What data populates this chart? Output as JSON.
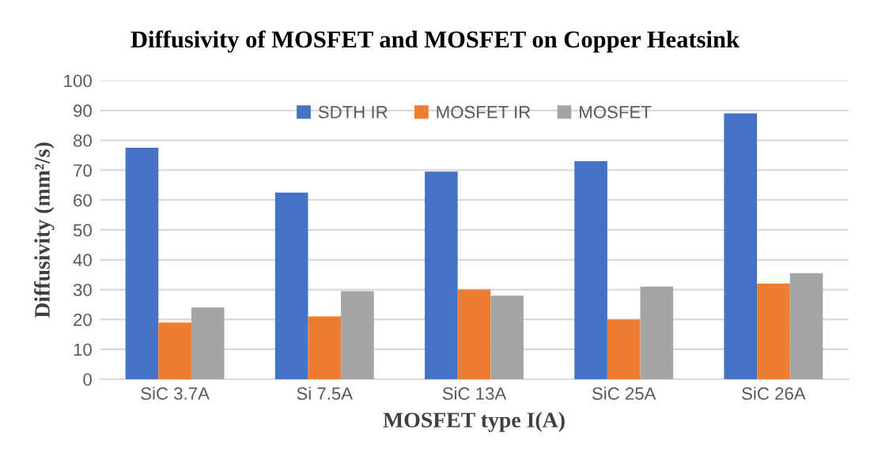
{
  "chart_data": {
    "type": "bar",
    "title": "Diffusivity of MOSFET and MOSFET on Copper Heatsink",
    "xlabel": "MOSFET type I(A)",
    "ylabel": "Diffusivity (mm²/s)",
    "categories": [
      "SiC 3.7A",
      "Si 7.5A",
      "SiC 13A",
      "SiC 25A",
      "SiC 26A"
    ],
    "series": [
      {
        "name": "SDTH IR",
        "color": "#4472c4",
        "values": [
          77.5,
          62.5,
          69.5,
          73,
          89
        ]
      },
      {
        "name": "MOSFET IR",
        "color": "#ed7d31",
        "values": [
          19,
          21,
          30,
          20,
          32
        ]
      },
      {
        "name": "MOSFET",
        "color": "#a5a5a5",
        "values": [
          24,
          29.5,
          28,
          31,
          35.5
        ]
      }
    ],
    "ylim": [
      0,
      100
    ],
    "yticks": [
      0,
      10,
      20,
      30,
      40,
      50,
      60,
      70,
      80,
      90,
      100
    ],
    "grid": "y",
    "legend": "top"
  }
}
